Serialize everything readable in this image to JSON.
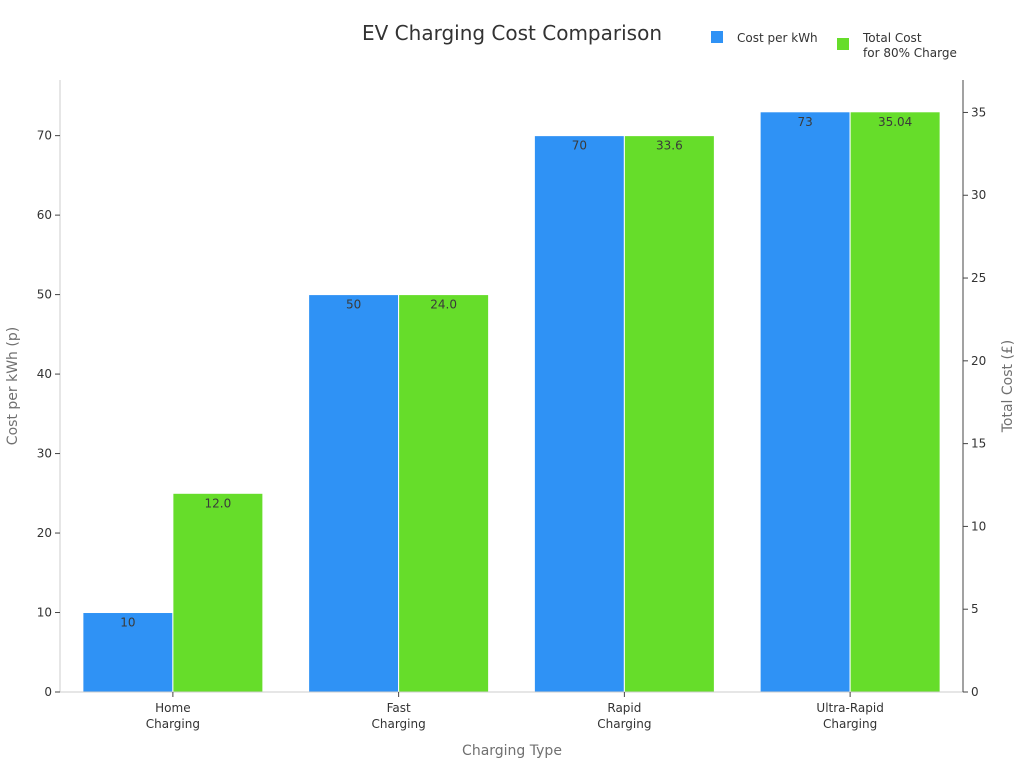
{
  "chart_data": {
    "type": "bar",
    "title": "EV Charging Cost Comparison",
    "xlabel": "Charging Type",
    "ylabel": "Cost per kWh (p)",
    "y2label": "Total Cost (£)",
    "ylim": [
      0,
      77
    ],
    "y2lim": [
      0,
      36.96
    ],
    "yticks": [
      "0",
      "10",
      "20",
      "30",
      "40",
      "50",
      "60",
      "70"
    ],
    "y2ticks": [
      "0",
      "5",
      "10",
      "15",
      "20",
      "25",
      "30",
      "35"
    ],
    "categories": [
      [
        "Home",
        "Charging"
      ],
      [
        "Fast",
        "Charging"
      ],
      [
        "Rapid",
        "Charging"
      ],
      [
        "Ultra-Rapid",
        "Charging"
      ]
    ],
    "series": [
      {
        "name": "Cost per kWh",
        "axis": "left",
        "color": "#2f92f5",
        "values": [
          10,
          50,
          70,
          73
        ],
        "labels": [
          "10",
          "50",
          "70",
          "73"
        ]
      },
      {
        "name": "Total Cost\nfor 80% Charge",
        "name_lines": [
          "Total Cost",
          "for 80% Charge"
        ],
        "axis": "right",
        "color": "#66dd2a",
        "values": [
          12.0,
          24.0,
          33.6,
          35.04
        ],
        "labels": [
          "12.0",
          "24.0",
          "33.6",
          "35.04"
        ]
      }
    ],
    "legend_position": "top-right",
    "grid": false
  }
}
